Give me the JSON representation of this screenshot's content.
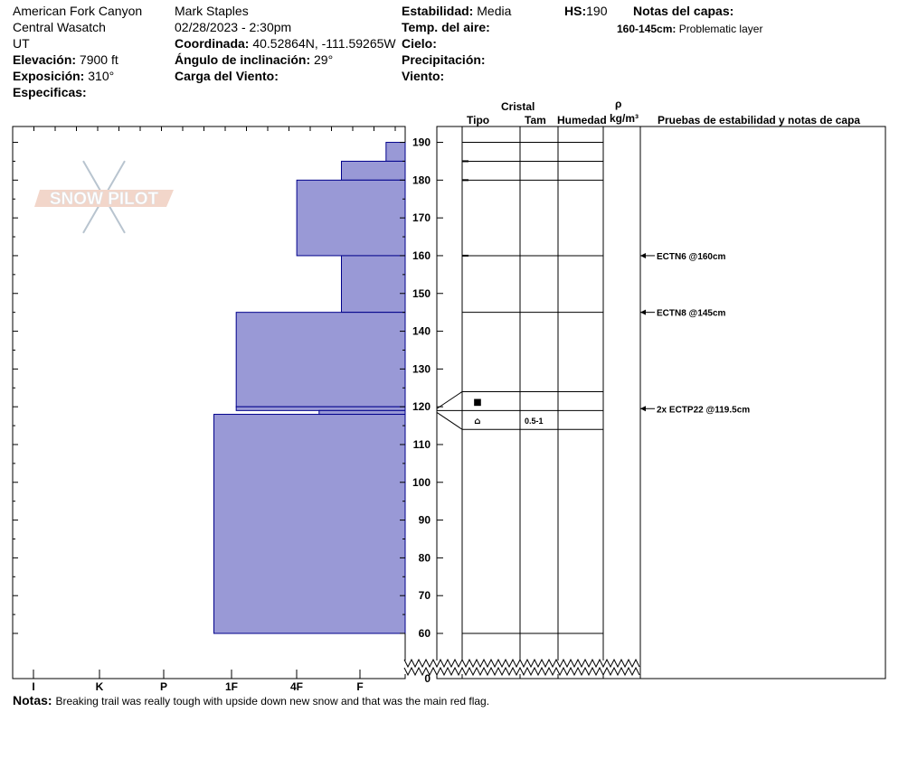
{
  "header": {
    "location": "American Fork Canyon",
    "range": "Central Wasatch",
    "state": "UT",
    "elevation_label": "Elevación:",
    "elevation_value": "7900 ft",
    "aspect_label": "Exposición:",
    "aspect_value": "310°",
    "specifics_label": "Especificas:",
    "observer": "Mark Staples",
    "datetime": "02/28/2023 - 2:30pm",
    "coord_label": "Coordinada:",
    "coord_value": "40.52864N, -111.59265W",
    "slope_label": "Ángulo de inclinación:",
    "slope_value": "29°",
    "wind_load_label": "Carga del Viento:",
    "stability_label": "Estabilidad:",
    "stability_value": "Media",
    "air_temp_label": "Temp. del aire:",
    "sky_label": "Cielo:",
    "precip_label": "Precipitación:",
    "wind_label": "Viento:",
    "hs_label": "HS:",
    "hs_value": "190",
    "layer_notes_label": "Notas del capas:",
    "layer_note_range": "160-145cm:",
    "layer_note_text": "Problematic layer"
  },
  "columns": {
    "crystal": "Cristal",
    "type": "Tipo",
    "size": "Tam",
    "moisture": "Humedad",
    "rho": "ρ",
    "density": "kg/m³",
    "tests": "Pruebas de estabilidad y notas de capa"
  },
  "notes": {
    "label": "Notas:",
    "text": "Breaking trail was really tough with upside down new snow and that was the main red flag."
  },
  "logo_text": "SNOW PILOT",
  "colors": {
    "hardness_fill": "#9999d6",
    "hardness_stroke": "#00008b"
  },
  "chart_data": {
    "type": "snow-profile",
    "hardness_scale": [
      "I",
      "K",
      "P",
      "1F",
      "4F",
      "F"
    ],
    "height_ticks": [
      190,
      180,
      170,
      160,
      150,
      140,
      130,
      120,
      110,
      100,
      90,
      80,
      70,
      60,
      0
    ],
    "height_range_cm": [
      0,
      195
    ],
    "axis_break": [
      0,
      60
    ],
    "layers": [
      {
        "top": 190,
        "bottom": 185,
        "hardness": 0.3
      },
      {
        "top": 185,
        "bottom": 180,
        "hardness": 1.0
      },
      {
        "top": 180,
        "bottom": 160,
        "hardness": 1.7
      },
      {
        "top": 160,
        "bottom": 145,
        "hardness": 1.0
      },
      {
        "top": 145,
        "bottom": 120,
        "hardness": 2.65
      },
      {
        "top": 120,
        "bottom": 119,
        "hardness": 2.65
      },
      {
        "top": 119,
        "bottom": 118,
        "hardness": 1.35
      },
      {
        "top": 118,
        "bottom": 60,
        "hardness": 3.0
      }
    ],
    "table_lines": [
      190,
      185,
      180,
      160,
      145,
      124,
      119,
      114,
      60
    ],
    "crystal_rows": [
      {
        "top": 124,
        "bottom": 119,
        "type_symbol": "■",
        "size": ""
      },
      {
        "top": 119,
        "bottom": 114,
        "type_symbol": "⌂",
        "size": "0.5-1"
      }
    ],
    "tests": [
      {
        "depth": 160,
        "label": "ECTN6 @160cm"
      },
      {
        "depth": 145,
        "label": "ECTN8 @145cm"
      },
      {
        "depth": 119.5,
        "label": "2x ECTP22 @119.5cm"
      }
    ]
  }
}
